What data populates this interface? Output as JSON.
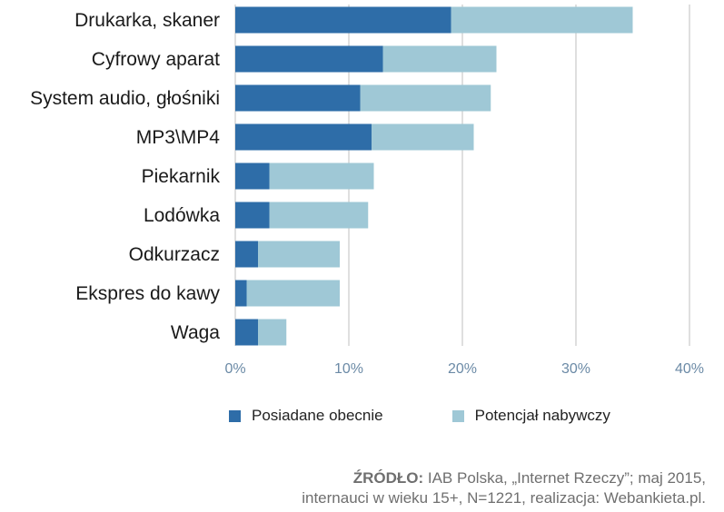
{
  "chart_data": {
    "type": "bar",
    "orientation": "horizontal",
    "stacked": true,
    "categories": [
      "Drukarka, skaner",
      "Cyfrowy aparat",
      "System audio, głośniki",
      "MP3\\MP4",
      "Piekarnik",
      "Lodówka",
      "Odkurzacz",
      "Ekspres do kawy",
      "Waga"
    ],
    "series": [
      {
        "name": "Posiadane obecnie",
        "color": "#2e6da8",
        "values": [
          19,
          13,
          11,
          12,
          3,
          3,
          2,
          1,
          2
        ]
      },
      {
        "name": "Potencjał nabywczy",
        "color": "#9fc8d6",
        "values": [
          16,
          10,
          11.5,
          9,
          9.2,
          8.7,
          7.2,
          8.2,
          2.5
        ]
      }
    ],
    "xlim": [
      0,
      40
    ],
    "xticks": [
      0,
      10,
      20,
      30,
      40
    ],
    "xtick_labels": [
      "0%",
      "10%",
      "20%",
      "30%",
      "40%"
    ],
    "grid": true,
    "legend_position": "bottom"
  },
  "source": {
    "label": "ŹRÓDŁO:",
    "line1": "IAB Polska, „Internet Rzeczy”; maj 2015,",
    "line2": "internauci w wieku 15+, N=1221, realizacja: Webankieta.pl."
  }
}
